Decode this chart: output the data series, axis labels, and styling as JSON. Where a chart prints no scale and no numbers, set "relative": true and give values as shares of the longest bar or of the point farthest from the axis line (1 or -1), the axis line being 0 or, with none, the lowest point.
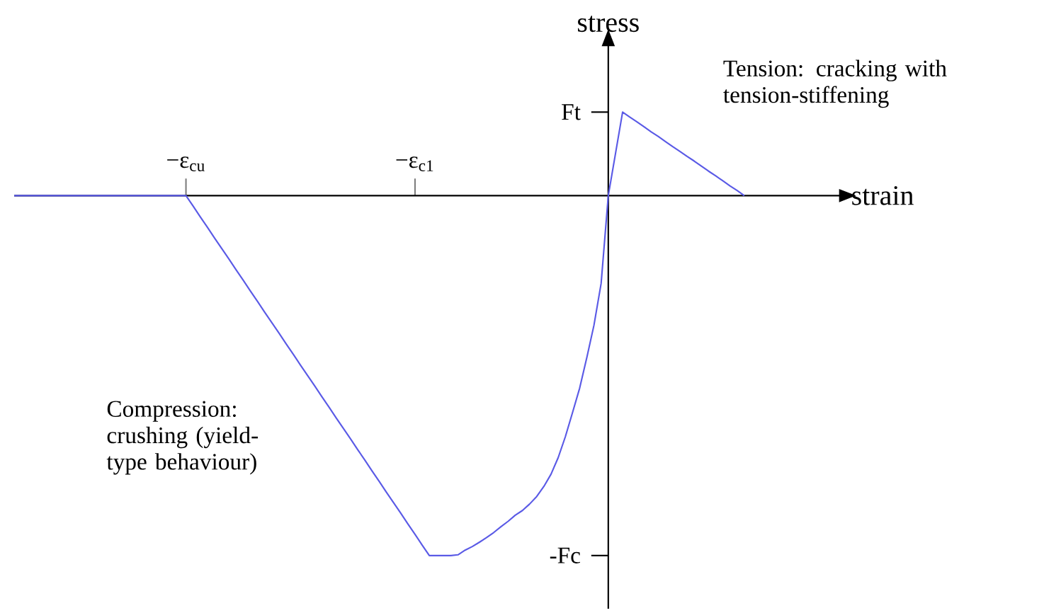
{
  "chart_data": {
    "type": "line",
    "relative": true,
    "xlabel": "strain",
    "ylabel": "stress",
    "categories": [
      null,
      null,
      null,
      null,
      null,
      null,
      null,
      null,
      null,
      null,
      null,
      null,
      null,
      null,
      null,
      null,
      null,
      null,
      null,
      null,
      null,
      null,
      null,
      null,
      "−ε$_{cu}$",
      null,
      null,
      null,
      null,
      null,
      null,
      null,
      null,
      null,
      null,
      null,
      null,
      null,
      null,
      null,
      null,
      null,
      null,
      null,
      null,
      null,
      null,
      null,
      null,
      null,
      null,
      null,
      null,
      null,
      null,
      null,
      "−ε$_{c1}$",
      null,
      null,
      null,
      null,
      null,
      null,
      null,
      null,
      null,
      null,
      null,
      null,
      null,
      null,
      null,
      null,
      null,
      null,
      null,
      null,
      null,
      null,
      null,
      null,
      null,
      null,
      null,
      null,
      null,
      null,
      null,
      null,
      null,
      null,
      null,
      null,
      null,
      null,
      null,
      null,
      null,
      null,
      null,
      null,
      null,
      null
    ],
    "values": [
      0,
      0,
      0,
      0,
      0,
      0,
      0,
      0,
      0,
      0,
      0,
      0,
      0,
      0,
      0,
      0,
      0,
      0,
      0,
      0,
      0,
      0,
      0,
      0,
      0,
      -0.029,
      -0.059,
      -0.088,
      -0.118,
      -0.147,
      -0.176,
      -0.206,
      -0.235,
      -0.265,
      -0.294,
      -0.324,
      -0.353,
      -0.382,
      -0.412,
      -0.441,
      -0.471,
      -0.5,
      -0.529,
      -0.559,
      -0.588,
      -0.618,
      -0.647,
      -0.676,
      -0.706,
      -0.735,
      -0.765,
      -0.794,
      -0.824,
      -0.853,
      -0.882,
      -0.912,
      -0.941,
      -0.971,
      -1.0,
      -1.0,
      -1.0,
      -1.0,
      -0.998,
      -0.985,
      -0.975,
      -0.963,
      -0.95,
      -0.936,
      -0.92,
      -0.905,
      -0.888,
      -0.875,
      -0.857,
      -0.836,
      -0.808,
      -0.774,
      -0.728,
      -0.67,
      -0.603,
      -0.535,
      -0.45,
      -0.36,
      -0.244,
      0,
      0.116,
      0.232,
      0.218,
      0.205,
      0.191,
      0.177,
      0.164,
      0.15,
      0.136,
      0.123,
      0.109,
      0.096,
      0.082,
      0.068,
      0.055,
      0.041,
      0.027,
      0.014,
      0
    ],
    "color": "#5a5ae6",
    "annotations": [
      "Ft",
      "-Fc",
      "Tension: cracking with tension-stiffening",
      "Compression: crushing (yield-type behaviour)"
    ],
    "marker": "none",
    "line_style": "solid"
  }
}
